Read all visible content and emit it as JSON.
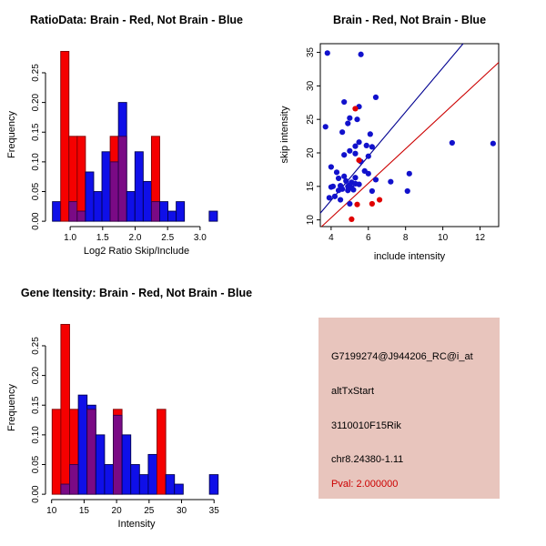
{
  "figure": {
    "background": "#ffffff"
  },
  "colors": {
    "hist_blue": "#0f0fe8",
    "hist_red": "#f50000",
    "hist_overlap": "#7a0a85",
    "stroke_blue": "#000050",
    "stroke_red": "#7f0000",
    "stroke_overlap": "#30004a",
    "dot_blue": "#1111cc",
    "dot_red": "#e00000",
    "line_blue": "#000090",
    "line_red": "#cc0000",
    "axis": "#000000",
    "info_bg": "#e8c5bd",
    "info_text": "#000000",
    "pval_text": "#cc0000"
  },
  "chart_data": [
    {
      "id": "ratio-hist",
      "type": "bar",
      "subtype": "overlaid-histogram",
      "title": "RatioData: Brain - Red, Not Brain - Blue",
      "xlabel": "Log2 Ratio Skip/Include",
      "ylabel": "Frequency",
      "xlim": [
        0.62,
        3.38
      ],
      "ylim": [
        -0.009,
        0.299
      ],
      "xtick_vals": [
        1.0,
        1.5,
        2.0,
        2.5,
        3.0
      ],
      "xtick_labels": [
        "1.0",
        "1.5",
        "2.0",
        "2.5",
        "3.0"
      ],
      "ytick_vals": [
        0.0,
        0.05,
        0.1,
        0.15,
        0.2,
        0.25
      ],
      "ytick_labels": [
        "0.00",
        "0.05",
        "0.10",
        "0.15",
        "0.20",
        "0.25"
      ],
      "legend_note": "red = Brain, blue = Not Brain, purple = overlap",
      "bins": {
        "start": 0.727,
        "width": 0.127,
        "blue": [
          0.033,
          0,
          0.033,
          0.017,
          0.083,
          0.05,
          0.117,
          0.1,
          0.2,
          0.05,
          0.117,
          0.067,
          0.033,
          0.033,
          0.017,
          0.033,
          0,
          0,
          0,
          0.017
        ],
        "red": [
          0,
          0.286,
          0.143,
          0.143,
          0,
          0,
          0,
          0.143,
          0.143,
          0,
          0,
          0,
          0.143,
          0,
          0,
          0,
          0,
          0,
          0,
          0
        ]
      }
    },
    {
      "id": "intensity-scatter",
      "type": "scatter",
      "title": "Brain - Red, Not Brain - Blue",
      "xlabel": "include intensity",
      "ylabel": "skip intensity",
      "xlim": [
        3.42,
        13.0
      ],
      "ylim": [
        9.0,
        36.3
      ],
      "xtick_vals": [
        4,
        6,
        8,
        10,
        12
      ],
      "xtick_labels": [
        "4",
        "6",
        "8",
        "10",
        "12"
      ],
      "ytick_vals": [
        10,
        15,
        20,
        25,
        30,
        35
      ],
      "ytick_labels": [
        "10",
        "15",
        "20",
        "25",
        "30",
        "35"
      ],
      "blue_points": [
        [
          3.8,
          34.9
        ],
        [
          5.6,
          34.7
        ],
        [
          6.4,
          28.3
        ],
        [
          4.7,
          27.6
        ],
        [
          5.5,
          26.9
        ],
        [
          5.0,
          25.2
        ],
        [
          5.4,
          25.0
        ],
        [
          4.9,
          24.4
        ],
        [
          3.7,
          23.9
        ],
        [
          4.6,
          23.1
        ],
        [
          6.1,
          22.8
        ],
        [
          10.5,
          21.5
        ],
        [
          12.7,
          21.4
        ],
        [
          5.5,
          21.6
        ],
        [
          5.3,
          21.0
        ],
        [
          5.9,
          21.1
        ],
        [
          6.2,
          20.9
        ],
        [
          5.0,
          20.3
        ],
        [
          5.3,
          19.9
        ],
        [
          4.7,
          19.7
        ],
        [
          6.0,
          19.5
        ],
        [
          5.6,
          18.7
        ],
        [
          4.0,
          17.9
        ],
        [
          5.8,
          17.3
        ],
        [
          4.3,
          17.1
        ],
        [
          6.0,
          16.9
        ],
        [
          8.2,
          16.9
        ],
        [
          4.7,
          16.5
        ],
        [
          5.3,
          16.3
        ],
        [
          4.4,
          16.2
        ],
        [
          6.4,
          16.0
        ],
        [
          4.8,
          15.8
        ],
        [
          7.2,
          15.7
        ],
        [
          5.1,
          15.6
        ],
        [
          5.3,
          15.4
        ],
        [
          5.5,
          15.3
        ],
        [
          5.0,
          15.2
        ],
        [
          4.5,
          15.1
        ],
        [
          4.1,
          15.0
        ],
        [
          4.9,
          15.0
        ],
        [
          4.0,
          14.9
        ],
        [
          5.1,
          14.8
        ],
        [
          4.6,
          14.6
        ],
        [
          5.2,
          14.5
        ],
        [
          4.4,
          14.4
        ],
        [
          4.9,
          14.4
        ],
        [
          6.2,
          14.3
        ],
        [
          8.1,
          14.3
        ],
        [
          4.2,
          13.5
        ],
        [
          3.9,
          13.3
        ],
        [
          4.5,
          13.0
        ],
        [
          5.0,
          12.4
        ]
      ],
      "red_points": [
        [
          5.3,
          26.6
        ],
        [
          5.5,
          18.9
        ],
        [
          6.6,
          13.0
        ],
        [
          6.2,
          12.4
        ],
        [
          5.4,
          12.3
        ],
        [
          5.1,
          10.1
        ]
      ],
      "lines": [
        {
          "color_key": "line_blue",
          "points": [
            [
              3.42,
              11.0
            ],
            [
              11.09,
              36.3
            ]
          ]
        },
        {
          "color_key": "line_red",
          "points": [
            [
              3.49,
              9.0
            ],
            [
              13.0,
              33.5
            ]
          ]
        }
      ]
    },
    {
      "id": "gene-hist",
      "type": "bar",
      "subtype": "overlaid-histogram",
      "title": "Gene Itensity: Brain - Red, Not Brain - Blue",
      "xlabel": "Intensity",
      "ylabel": "Frequency",
      "xlim": [
        9.06,
        36.65
      ],
      "ylim": [
        -0.009,
        0.299
      ],
      "xtick_vals": [
        10,
        15,
        20,
        25,
        30,
        35
      ],
      "xtick_labels": [
        "10",
        "15",
        "20",
        "25",
        "30",
        "35"
      ],
      "ytick_vals": [
        0.0,
        0.05,
        0.1,
        0.15,
        0.2,
        0.25
      ],
      "ytick_labels": [
        "0.00",
        "0.05",
        "0.10",
        "0.15",
        "0.20",
        "0.25"
      ],
      "legend_note": "red = Brain, blue = Not Brain, purple = overlap",
      "bins": {
        "start": 10.08,
        "width": 1.345,
        "blue": [
          0,
          0.017,
          0.05,
          0.167,
          0.15,
          0.1,
          0.05,
          0.133,
          0.1,
          0.05,
          0.033,
          0.067,
          0,
          0.033,
          0.017,
          0,
          0,
          0,
          0.033
        ],
        "red": [
          0.143,
          0.286,
          0.143,
          0,
          0.143,
          0,
          0,
          0.143,
          0,
          0,
          0,
          0,
          0.143,
          0,
          0,
          0,
          0,
          0,
          0
        ]
      }
    }
  ],
  "info_panel": {
    "lines": [
      "G7199274@J944206_RC@i_at",
      "altTxStart",
      "3110010F15Rik",
      "chr8.24380-1.11",
      "Pval: 2.000000"
    ]
  }
}
